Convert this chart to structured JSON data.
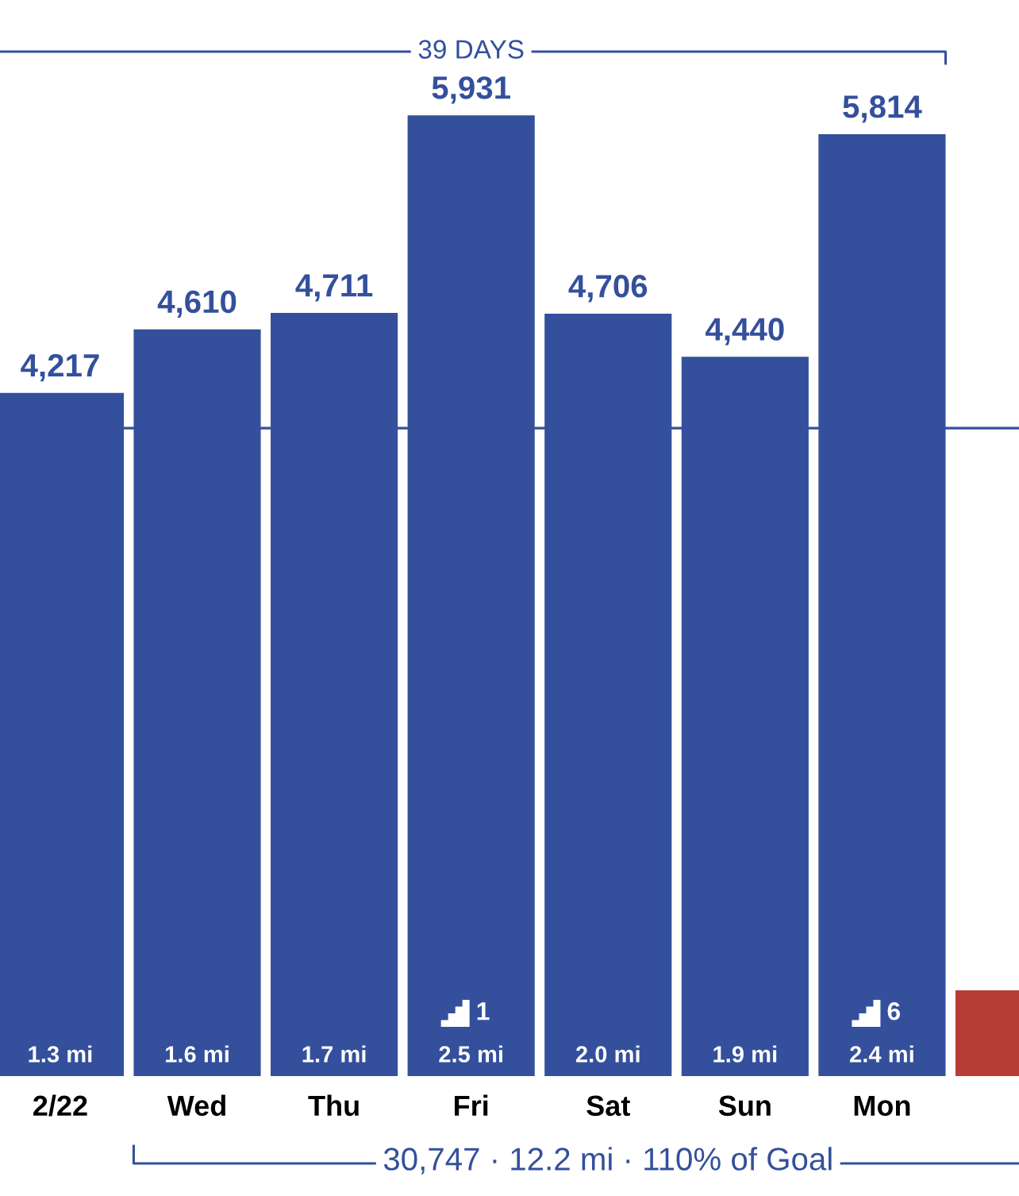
{
  "chart_data": {
    "type": "bar",
    "categories": [
      "2/22",
      "Wed",
      "Thu",
      "Fri",
      "Sat",
      "Sun",
      "Mon",
      null
    ],
    "values": [
      4217,
      4610,
      4711,
      5931,
      4706,
      4440,
      5814,
      530
    ],
    "colors": [
      "#34509c",
      "#34509c",
      "#34509c",
      "#34509c",
      "#34509c",
      "#34509c",
      "#34509c",
      "#b83c36"
    ],
    "value_labels": [
      "4,217",
      "4,610",
      "4,711",
      "5,931",
      "4,706",
      "4,440",
      "5,814",
      null
    ],
    "ref_lines": [
      {
        "axis": "y",
        "value": 4000,
        "color": "#34509c"
      }
    ],
    "tick_labels": "x",
    "annotations": [
      "39 DAYS",
      "30,747 · 12.2 mi · 110% of Goal",
      "1.3 mi",
      "1.6 mi",
      "1.7 mi",
      "1\n2.5 mi",
      "2.0 mi",
      "1.9 mi",
      "6\n2.4 mi"
    ]
  }
}
